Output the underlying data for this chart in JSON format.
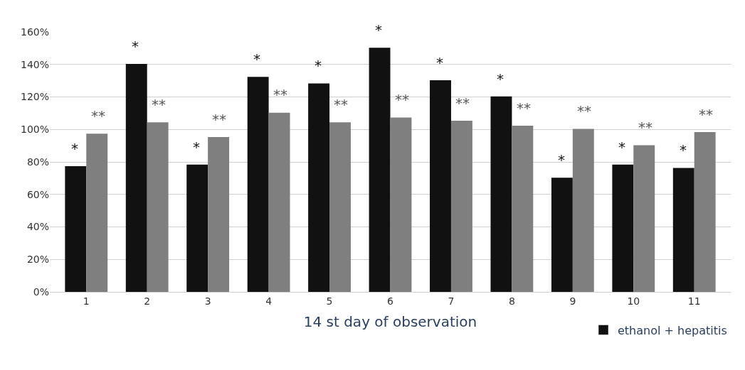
{
  "chart_data": {
    "type": "bar",
    "xlabel": "14 st day of observation",
    "categories": [
      "1",
      "2",
      "3",
      "4",
      "5",
      "6",
      "7",
      "8",
      "9",
      "10",
      "11"
    ],
    "series": [
      {
        "name": "ethanol + hepatitis",
        "color": "#111111",
        "values": [
          77,
          140,
          78,
          132,
          128,
          150,
          130,
          120,
          70,
          78,
          76
        ]
      },
      {
        "color": "#7f7f7f",
        "values": [
          97,
          104,
          95,
          110,
          104,
          107,
          105,
          102,
          100,
          90,
          98
        ]
      }
    ],
    "ylim": [
      0,
      160
    ],
    "yticks": [
      {
        "value": 0,
        "label": "0%"
      },
      {
        "value": 20,
        "label": "20%"
      },
      {
        "value": 40,
        "label": "40%"
      },
      {
        "value": 60,
        "label": "60%"
      },
      {
        "value": 80,
        "label": "80%"
      },
      {
        "value": 100,
        "label": "100%"
      },
      {
        "value": 120,
        "label": "120%"
      },
      {
        "value": 140,
        "label": "140%"
      },
      {
        "value": 160,
        "label": "160%"
      }
    ],
    "grid": "y",
    "legend": "bottom right",
    "annotations": [
      {
        "text": "*",
        "x": "1",
        "y": 77
      },
      {
        "text": "*",
        "x": "2",
        "y": 140
      },
      {
        "text": "*",
        "x": "3",
        "y": 78
      },
      {
        "text": "*",
        "x": "4",
        "y": 132
      },
      {
        "text": "*",
        "x": "5",
        "y": 128
      },
      {
        "text": "*",
        "x": "6",
        "y": 150
      },
      {
        "text": "*",
        "x": "7",
        "y": 130
      },
      {
        "text": "*",
        "x": "8",
        "y": 120
      },
      {
        "text": "*",
        "x": "9",
        "y": 70
      },
      {
        "text": "*",
        "x": "10",
        "y": 78
      },
      {
        "text": "*",
        "x": "11",
        "y": 76
      },
      {
        "text": "**",
        "x": "1",
        "y": 97
      },
      {
        "text": "**",
        "x": "2",
        "y": 104
      },
      {
        "text": "**",
        "x": "3",
        "y": 95
      },
      {
        "text": "**",
        "x": "4",
        "y": 110
      },
      {
        "text": "**",
        "x": "5",
        "y": 104
      },
      {
        "text": "**",
        "x": "6",
        "y": 107
      },
      {
        "text": "**",
        "x": "7",
        "y": 105
      },
      {
        "text": "**",
        "x": "8",
        "y": 102
      },
      {
        "text": "**",
        "x": "9",
        "y": 100
      },
      {
        "text": "**",
        "x": "10",
        "y": 90
      },
      {
        "text": "**",
        "x": "11",
        "y": 98
      }
    ]
  }
}
